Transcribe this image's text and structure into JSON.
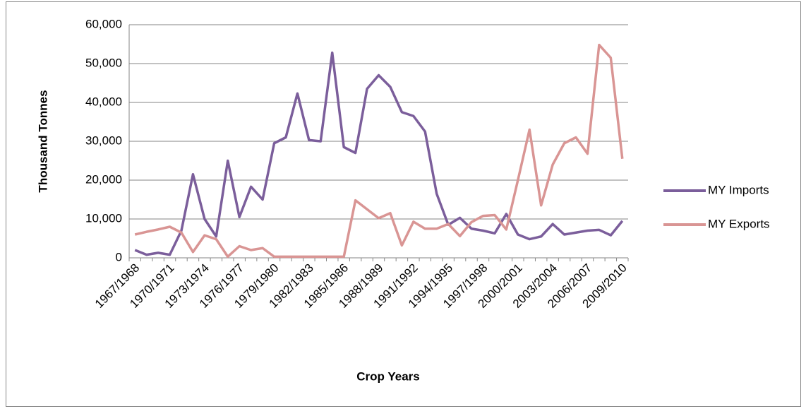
{
  "chart_data": {
    "type": "line",
    "x_label": "Crop Years",
    "y_label": "Thousand Tonnes",
    "categories": [
      "1967/1968",
      null,
      null,
      "1970/1971",
      null,
      null,
      "1973/1974",
      null,
      null,
      "1976/1977",
      null,
      null,
      "1979/1980",
      null,
      null,
      "1982/1983",
      null,
      null,
      "1985/1986",
      null,
      null,
      "1988/1989",
      null,
      null,
      "1991/1992",
      null,
      null,
      "1994/1995",
      null,
      null,
      "1997/1998",
      null,
      null,
      "2000/2001",
      null,
      null,
      "2003/2004",
      null,
      null,
      "2006/2007",
      null,
      null,
      "2009/2010"
    ],
    "series": [
      {
        "name": "MY Imports",
        "color": "#7b5e9b",
        "values": [
          2000,
          800,
          1300,
          800,
          7000,
          21500,
          10000,
          5500,
          25000,
          10500,
          18300,
          15000,
          29500,
          31000,
          42300,
          30300,
          30000,
          52800,
          28500,
          27000,
          43500,
          47000,
          44000,
          37500,
          36500,
          32500,
          16500,
          8500,
          10300,
          7500,
          7000,
          6300,
          11300,
          6000,
          4800,
          5500,
          8700,
          6000,
          6500,
          7000,
          7200,
          5800,
          9500
        ]
      },
      {
        "name": "MY Exports",
        "color": "#d99594",
        "values": [
          6000,
          6700,
          7300,
          8000,
          6500,
          1500,
          5800,
          4800,
          300,
          3000,
          2000,
          2500,
          300,
          300,
          300,
          300,
          300,
          300,
          300,
          14800,
          12500,
          10200,
          11500,
          3200,
          9300,
          7500,
          7500,
          8700,
          5600,
          9200,
          10800,
          11000,
          7300,
          20000,
          33000,
          13500,
          24000,
          29500,
          31000,
          26800,
          54800,
          51500,
          25500
        ]
      }
    ],
    "ylim": [
      0,
      60000
    ],
    "yticks": [
      0,
      {
        "value": 10000,
        "label": "10,000"
      },
      {
        "value": 20000,
        "label": "20,000"
      },
      {
        "value": 30000,
        "label": "30,000"
      },
      {
        "value": 40000,
        "label": "40,000"
      },
      {
        "value": 50000,
        "label": "50,000"
      },
      {
        "value": 60000,
        "label": "60,000"
      }
    ],
    "grid": true,
    "legend": "right"
  }
}
